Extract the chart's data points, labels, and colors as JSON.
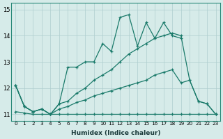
{
  "xlabel": "Humidex (Indice chaleur)",
  "background_color": "#d6ebe9",
  "grid_color": "#aecece",
  "line_color": "#1a7a6a",
  "x_values": [
    0,
    1,
    2,
    3,
    4,
    5,
    6,
    7,
    8,
    9,
    10,
    11,
    12,
    13,
    14,
    15,
    16,
    17,
    18,
    19,
    20,
    21,
    22,
    23
  ],
  "series": {
    "line1": [
      12.1,
      11.3,
      11.1,
      11.2,
      11.0,
      11.4,
      12.8,
      12.8,
      13.0,
      13.0,
      13.7,
      13.4,
      14.7,
      14.8,
      13.6,
      14.5,
      13.9,
      14.5,
      14.0,
      13.9,
      null,
      null,
      null,
      null
    ],
    "line2": [
      12.1,
      11.3,
      11.1,
      11.2,
      11.0,
      11.4,
      11.5,
      11.8,
      12.0,
      12.3,
      12.5,
      12.7,
      13.0,
      13.3,
      13.5,
      13.7,
      13.9,
      14.0,
      14.1,
      14.0,
      12.3,
      11.5,
      11.4,
      11.0
    ],
    "line3": [
      12.1,
      11.3,
      11.1,
      11.2,
      11.0,
      11.2,
      11.3,
      11.45,
      11.55,
      11.7,
      11.8,
      11.9,
      12.0,
      12.1,
      12.2,
      12.3,
      12.5,
      12.6,
      12.7,
      12.2,
      12.3,
      11.5,
      11.4,
      11.0
    ],
    "line4": [
      11.1,
      11.05,
      11.0,
      11.0,
      11.0,
      11.0,
      11.0,
      11.0,
      11.0,
      11.0,
      11.0,
      11.0,
      11.0,
      11.0,
      11.0,
      11.0,
      11.0,
      11.0,
      11.0,
      11.0,
      11.0,
      11.0,
      11.0,
      11.0
    ]
  },
  "ylim": [
    10.75,
    15.25
  ],
  "xlim": [
    -0.5,
    23.5
  ],
  "yticks": [
    11,
    12,
    13,
    14,
    15
  ],
  "xticks": [
    0,
    1,
    2,
    3,
    4,
    5,
    6,
    7,
    8,
    9,
    10,
    11,
    12,
    13,
    14,
    15,
    16,
    17,
    18,
    19,
    20,
    21,
    22,
    23
  ]
}
